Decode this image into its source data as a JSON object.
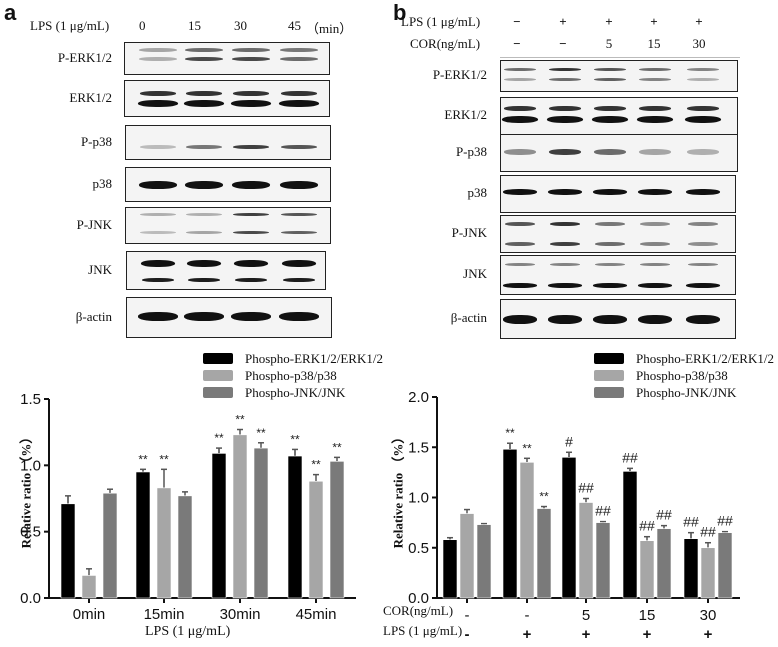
{
  "panel_a": {
    "letter": "a",
    "header": {
      "condition": "LPS (1 μg/mL)",
      "lanes": [
        "0",
        "15",
        "30",
        "45"
      ],
      "unit": "（min）"
    },
    "blots": [
      "P-ERK1/2",
      "ERK1/2",
      "P-p38",
      "p38",
      "P-JNK",
      "JNK",
      "β-actin"
    ]
  },
  "panel_b": {
    "letter": "b",
    "header": {
      "row1_label": "LPS (1 μg/mL)",
      "row1_values": [
        "−",
        "+",
        "+",
        "+",
        "+"
      ],
      "row2_label": "COR(ng/mL)",
      "row2_values": [
        "−",
        "−",
        "5",
        "15",
        "30"
      ]
    },
    "blots": [
      "P-ERK1/2",
      "ERK1/2",
      "P-p38",
      "p38",
      "P-JNK",
      "JNK",
      "β-actin"
    ]
  },
  "legend": [
    {
      "name": "Phospho-ERK1/2/ERK1/2",
      "color": "#000000"
    },
    {
      "name": "Phospho-p38/p38",
      "color": "#a6a6a6"
    },
    {
      "name": "Phospho-JNK/JNK",
      "color": "#7a7a7a"
    }
  ],
  "chart_a_labels": {
    "ylabel": "Relative ratio （%）",
    "yticks": [
      "0.0",
      "0.5",
      "1.0",
      "1.5"
    ],
    "categories": [
      "0min",
      "15min",
      "30min",
      "45min"
    ],
    "xlabel": "LPS (1 μg/mL)"
  },
  "chart_b_labels": {
    "ylabel": "Relative ratio （%）",
    "yticks": [
      "0.0",
      "0.5",
      "1.0",
      "1.5",
      "2.0"
    ],
    "row1_label": "COR(ng/mL)",
    "row1_values": [
      "-",
      "-",
      "5",
      "15",
      "30"
    ],
    "row2_label": "LPS (1 μg/mL)",
    "row2_values": [
      "-",
      "+",
      "+",
      "+",
      "+"
    ]
  },
  "chart_data": [
    {
      "type": "bar",
      "title": "",
      "xlabel": "LPS (1 μg/mL)",
      "ylabel": "Relative ratio （%）",
      "ylim": [
        0,
        1.5
      ],
      "yticks": [
        0.0,
        0.5,
        1.0,
        1.5
      ],
      "categories": [
        "0min",
        "15min",
        "30min",
        "45min"
      ],
      "legend_position": "top-right",
      "grid": false,
      "series": [
        {
          "name": "Phospho-ERK1/2/ERK1/2",
          "color": "#000000",
          "values": [
            0.71,
            0.95,
            1.09,
            1.07
          ],
          "errors": [
            0.06,
            0.02,
            0.04,
            0.05
          ],
          "annotations": [
            "",
            "**",
            "**",
            "**"
          ]
        },
        {
          "name": "Phospho-p38/p38",
          "color": "#a6a6a6",
          "values": [
            0.17,
            0.83,
            1.23,
            0.88
          ],
          "errors": [
            0.05,
            0.14,
            0.04,
            0.05
          ],
          "annotations": [
            "",
            "**",
            "**",
            "**"
          ]
        },
        {
          "name": "Phospho-JNK/JNK",
          "color": "#7a7a7a",
          "values": [
            0.79,
            0.77,
            1.13,
            1.03
          ],
          "errors": [
            0.03,
            0.03,
            0.04,
            0.03
          ],
          "annotations": [
            "",
            "",
            "**",
            "**"
          ]
        }
      ]
    },
    {
      "type": "bar",
      "title": "",
      "xlabel": "COR(ng/mL) / LPS (1 μg/mL)",
      "ylabel": "Relative ratio （%）",
      "ylim": [
        0,
        2.0
      ],
      "yticks": [
        0.0,
        0.5,
        1.0,
        1.5,
        2.0
      ],
      "categories": [
        "COR - / LPS -",
        "COR - / LPS +",
        "COR 5 / LPS +",
        "COR 15 / LPS +",
        "COR 30 / LPS +"
      ],
      "legend_position": "top-right",
      "grid": false,
      "series": [
        {
          "name": "Phospho-ERK1/2/ERK1/2",
          "color": "#000000",
          "values": [
            0.58,
            1.48,
            1.4,
            1.26,
            0.59
          ],
          "errors": [
            0.02,
            0.06,
            0.05,
            0.03,
            0.06
          ],
          "annotations": [
            "",
            "**",
            "#",
            "##",
            "##"
          ]
        },
        {
          "name": "Phospho-p38/p38",
          "color": "#a6a6a6",
          "values": [
            0.84,
            1.35,
            0.95,
            0.57,
            0.5
          ],
          "errors": [
            0.04,
            0.04,
            0.04,
            0.04,
            0.05
          ],
          "annotations": [
            "",
            "**",
            "##",
            "##",
            "##"
          ]
        },
        {
          "name": "Phospho-JNK/JNK",
          "color": "#7a7a7a",
          "values": [
            0.73,
            0.89,
            0.75,
            0.69,
            0.65
          ],
          "errors": [
            0.01,
            0.02,
            0.01,
            0.03,
            0.01
          ],
          "annotations": [
            "",
            "**",
            "##",
            "##",
            "##"
          ]
        }
      ]
    }
  ]
}
